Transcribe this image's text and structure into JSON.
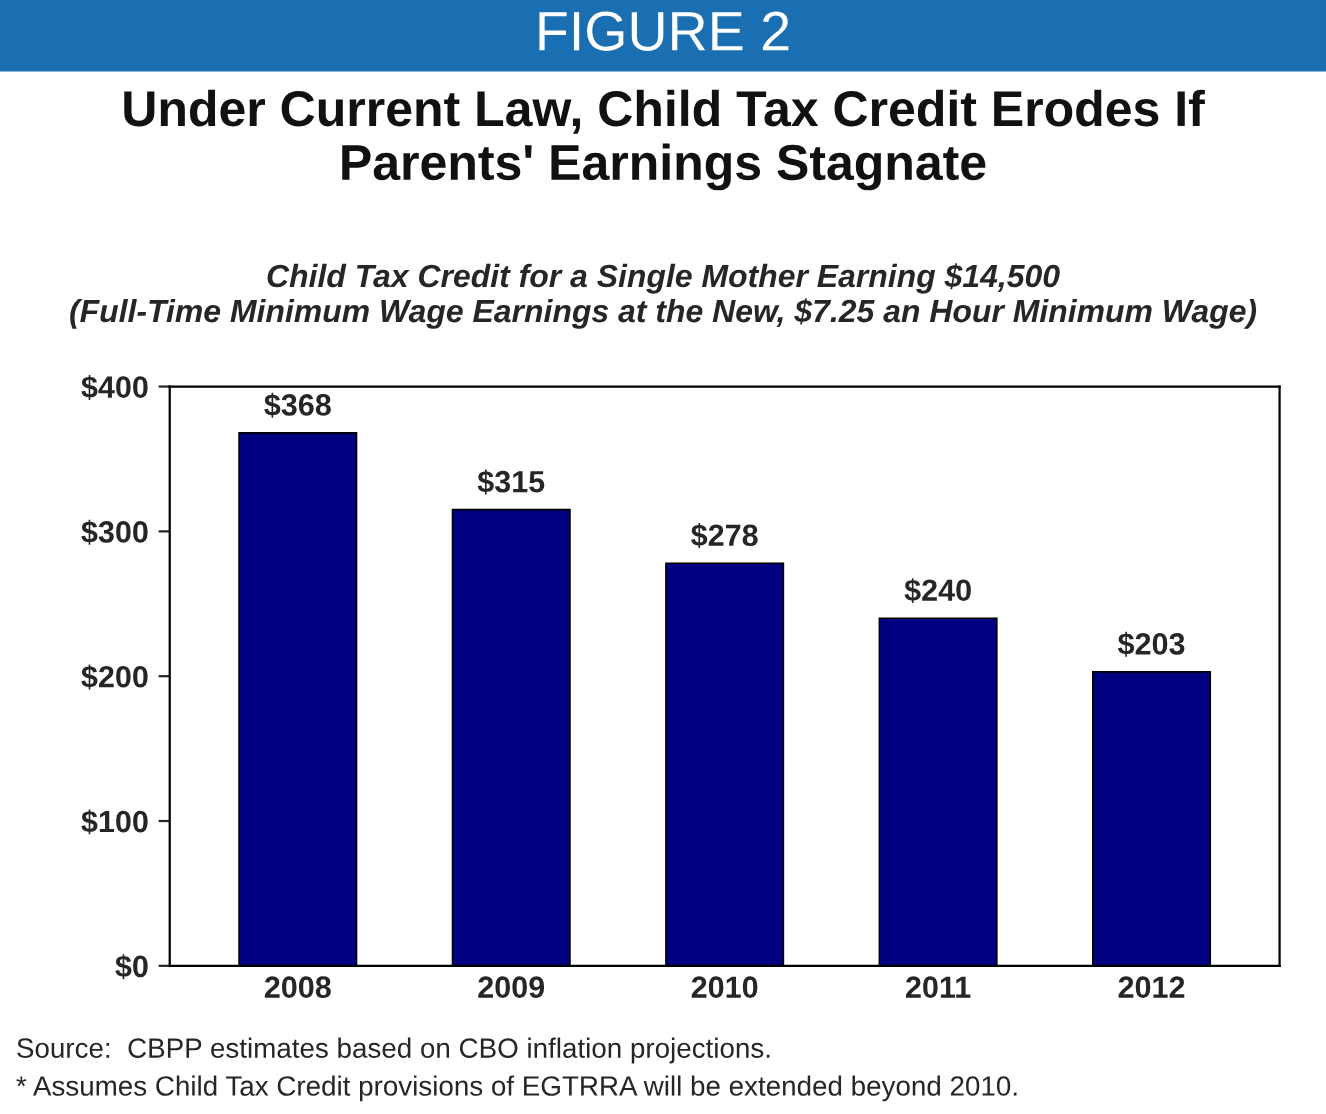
{
  "chart_data": {
    "type": "bar",
    "title": "Under Current Law, Child Tax Credit Erodes If\nParents' Earnings Stagnate",
    "subtitle": "Child Tax Credit for a Single Mother Earning $14,500\n(Full-Time Minimum Wage Earnings at the New, $7.25 an Hour Minimum Wage)",
    "categories": [
      "2008",
      "2009",
      "2010",
      "2011",
      "2012"
    ],
    "values": [
      368,
      315,
      278,
      240,
      203
    ],
    "value_labels": [
      "$368",
      "$315",
      "$278",
      "$240",
      "$203"
    ],
    "color": "#000080",
    "ylim": [
      0,
      400
    ],
    "yticks": [
      {
        "value": 0,
        "label": "$0"
      },
      {
        "value": 100,
        "label": "$100"
      },
      {
        "value": 200,
        "label": "$200"
      },
      {
        "value": 300,
        "label": "$300"
      },
      {
        "value": 400,
        "label": "$400"
      }
    ],
    "grid": false,
    "annotations": [
      "FIGURE 2",
      "Source:  CBPP estimates based on CBO inflation projections.",
      "* Assumes Child Tax Credit provisions of EGTRRA will be extended beyond 2010."
    ]
  }
}
